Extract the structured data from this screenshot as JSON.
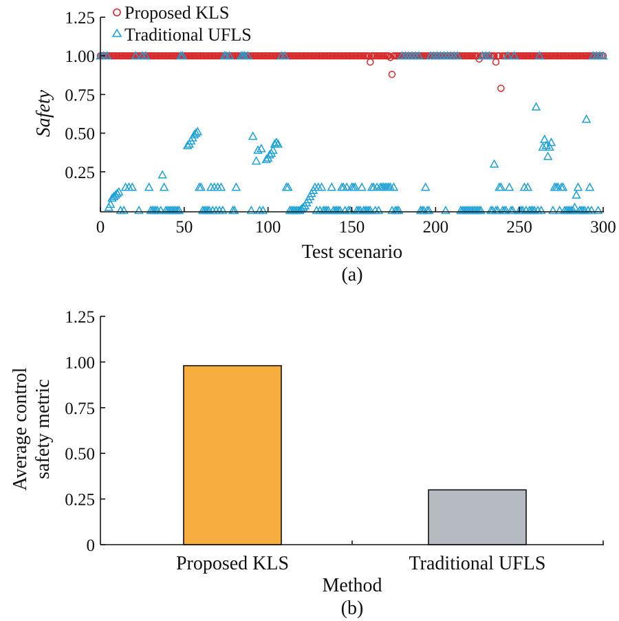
{
  "chart_data": [
    {
      "type": "scatter",
      "panel_label": "(a)",
      "xlabel": "Test scenario",
      "ylabel": "Safety",
      "xlim": [
        0,
        300
      ],
      "ylim": [
        0,
        1.25
      ],
      "xticks": [
        0,
        50,
        100,
        150,
        200,
        250,
        300
      ],
      "xtick_labels": [
        "0",
        "50",
        "100",
        "150",
        "200",
        "250",
        "300"
      ],
      "yticks": [
        0.25,
        0.5,
        0.75,
        1.0,
        1.25
      ],
      "ytick_labels": [
        "0.25",
        "0.50",
        "0.75",
        "1.00",
        "1.25"
      ],
      "legend_position": "top-left",
      "series": [
        {
          "name": "Proposed KLS",
          "marker": "circle",
          "color": "#d62728",
          "default_value": 1.0,
          "x_range": [
            0,
            300
          ],
          "x_step": 1,
          "exceptions": [
            [
              161,
              0.96
            ],
            [
              173,
              0.99
            ],
            [
              174,
              0.88
            ],
            [
              226,
              0.98
            ],
            [
              236,
              0.96
            ],
            [
              239,
              0.79
            ]
          ]
        },
        {
          "name": "Traditional UFLS",
          "marker": "triangle",
          "color": "#1ca0d8",
          "points": [
            [
              0,
              1.0
            ],
            [
              2,
              1.0
            ],
            [
              4,
              1.0
            ],
            [
              5,
              0.02
            ],
            [
              6,
              0.04
            ],
            [
              7,
              0.08
            ],
            [
              8,
              0.09
            ],
            [
              9,
              0.1
            ],
            [
              10,
              0.11
            ],
            [
              11,
              0.12
            ],
            [
              12,
              0.0
            ],
            [
              14,
              0.0
            ],
            [
              15,
              0.15
            ],
            [
              17,
              0.15
            ],
            [
              19,
              0.15
            ],
            [
              21,
              1.0
            ],
            [
              23,
              0.0
            ],
            [
              25,
              1.0
            ],
            [
              27,
              1.0
            ],
            [
              29,
              0.15
            ],
            [
              30,
              0.0
            ],
            [
              31,
              0.0
            ],
            [
              32,
              0.0
            ],
            [
              33,
              0.0
            ],
            [
              34,
              0.0
            ],
            [
              36,
              0.0
            ],
            [
              37,
              0.23
            ],
            [
              38,
              0.15
            ],
            [
              39,
              0.0
            ],
            [
              40,
              0.0
            ],
            [
              41,
              0.0
            ],
            [
              42,
              0.0
            ],
            [
              43,
              0.0
            ],
            [
              44,
              0.0
            ],
            [
              45,
              0.0
            ],
            [
              46,
              0.0
            ],
            [
              47,
              0.0
            ],
            [
              48,
              1.0
            ],
            [
              49,
              1.0
            ],
            [
              52,
              0.42
            ],
            [
              53,
              0.43
            ],
            [
              54,
              0.45
            ],
            [
              55,
              0.47
            ],
            [
              56,
              0.49
            ],
            [
              57,
              0.5
            ],
            [
              58,
              0.51
            ],
            [
              59,
              0.15
            ],
            [
              60,
              0.15
            ],
            [
              61,
              0.0
            ],
            [
              62,
              0.0
            ],
            [
              63,
              0.0
            ],
            [
              64,
              0.0
            ],
            [
              65,
              0.0
            ],
            [
              66,
              0.15
            ],
            [
              67,
              0.0
            ],
            [
              68,
              0.15
            ],
            [
              69,
              0.0
            ],
            [
              70,
              0.15
            ],
            [
              71,
              0.0
            ],
            [
              72,
              0.15
            ],
            [
              73,
              0.0
            ],
            [
              74,
              1.0
            ],
            [
              75,
              1.0
            ],
            [
              77,
              1.0
            ],
            [
              79,
              0.0
            ],
            [
              80,
              0.0
            ],
            [
              81,
              0.15
            ],
            [
              84,
              1.0
            ],
            [
              85,
              1.0
            ],
            [
              86,
              1.0
            ],
            [
              88,
              1.0
            ],
            [
              90,
              0.0
            ],
            [
              91,
              0.48
            ],
            [
              93,
              0.32
            ],
            [
              94,
              0.39
            ],
            [
              95,
              0.0
            ],
            [
              96,
              0.4
            ],
            [
              97,
              0.0
            ],
            [
              99,
              0.33
            ],
            [
              100,
              0.34
            ],
            [
              101,
              0.36
            ],
            [
              102,
              0.37
            ],
            [
              103,
              0.39
            ],
            [
              104,
              0.43
            ],
            [
              105,
              0.44
            ],
            [
              106,
              0.43
            ],
            [
              108,
              1.0
            ],
            [
              110,
              1.0
            ],
            [
              111,
              0.15
            ],
            [
              112,
              0.15
            ],
            [
              113,
              0.0
            ],
            [
              114,
              0.0
            ],
            [
              115,
              0.0
            ],
            [
              116,
              0.0
            ],
            [
              117,
              0.0
            ],
            [
              118,
              0.0
            ],
            [
              119,
              0.0
            ],
            [
              120,
              0.01
            ],
            [
              121,
              0.02
            ],
            [
              122,
              0.03
            ],
            [
              123,
              0.05
            ],
            [
              124,
              0.07
            ],
            [
              125,
              0.09
            ],
            [
              126,
              0.11
            ],
            [
              127,
              0.13
            ],
            [
              128,
              0.15
            ],
            [
              129,
              0.0
            ],
            [
              130,
              0.15
            ],
            [
              131,
              0.0
            ],
            [
              132,
              0.15
            ],
            [
              133,
              0.0
            ],
            [
              134,
              0.0
            ],
            [
              135,
              0.0
            ],
            [
              136,
              0.0
            ],
            [
              138,
              0.15
            ],
            [
              139,
              0.0
            ],
            [
              140,
              0.0
            ],
            [
              141,
              0.0
            ],
            [
              142,
              0.0
            ],
            [
              143,
              0.0
            ],
            [
              144,
              0.15
            ],
            [
              145,
              0.15
            ],
            [
              146,
              0.0
            ],
            [
              147,
              0.15
            ],
            [
              148,
              0.0
            ],
            [
              149,
              0.0
            ],
            [
              150,
              0.15
            ],
            [
              151,
              0.15
            ],
            [
              152,
              0.15
            ],
            [
              153,
              0.0
            ],
            [
              154,
              0.0
            ],
            [
              155,
              0.0
            ],
            [
              156,
              0.15
            ],
            [
              157,
              0.0
            ],
            [
              158,
              0.0
            ],
            [
              159,
              0.0
            ],
            [
              160,
              0.0
            ],
            [
              161,
              0.0
            ],
            [
              162,
              0.15
            ],
            [
              163,
              0.15
            ],
            [
              164,
              0.0
            ],
            [
              165,
              0.15
            ],
            [
              166,
              0.0
            ],
            [
              167,
              0.15
            ],
            [
              168,
              0.15
            ],
            [
              169,
              0.15
            ],
            [
              170,
              0.15
            ],
            [
              171,
              0.15
            ],
            [
              172,
              0.15
            ],
            [
              173,
              0.15
            ],
            [
              174,
              0.0
            ],
            [
              175,
              0.15
            ],
            [
              176,
              0.0
            ],
            [
              177,
              0.0
            ],
            [
              178,
              0.0
            ],
            [
              180,
              1.0
            ],
            [
              182,
              1.0
            ],
            [
              184,
              1.0
            ],
            [
              186,
              1.0
            ],
            [
              188,
              1.0
            ],
            [
              190,
              1.0
            ],
            [
              191,
              0.0
            ],
            [
              192,
              0.0
            ],
            [
              193,
              0.0
            ],
            [
              194,
              0.15
            ],
            [
              195,
              0.0
            ],
            [
              196,
              0.0
            ],
            [
              197,
              1.0
            ],
            [
              199,
              1.0
            ],
            [
              201,
              1.0
            ],
            [
              203,
              1.0
            ],
            [
              205,
              1.0
            ],
            [
              206,
              0.0
            ],
            [
              207,
              1.0
            ],
            [
              209,
              1.0
            ],
            [
              211,
              1.0
            ],
            [
              213,
              1.0
            ],
            [
              215,
              0.0
            ],
            [
              216,
              0.0
            ],
            [
              217,
              0.0
            ],
            [
              218,
              0.0
            ],
            [
              219,
              0.0
            ],
            [
              220,
              0.0
            ],
            [
              221,
              0.0
            ],
            [
              222,
              0.0
            ],
            [
              223,
              0.0
            ],
            [
              224,
              0.0
            ],
            [
              225,
              0.0
            ],
            [
              226,
              0.0
            ],
            [
              227,
              0.0
            ],
            [
              228,
              1.0
            ],
            [
              230,
              1.0
            ],
            [
              232,
              1.0
            ],
            [
              233,
              0.0
            ],
            [
              234,
              0.0
            ],
            [
              235,
              0.3
            ],
            [
              236,
              0.0
            ],
            [
              237,
              0.0
            ],
            [
              238,
              0.15
            ],
            [
              239,
              0.15
            ],
            [
              240,
              0.0
            ],
            [
              241,
              0.0
            ],
            [
              242,
              0.0
            ],
            [
              243,
              1.0
            ],
            [
              244,
              0.15
            ],
            [
              245,
              0.0
            ],
            [
              246,
              0.0
            ],
            [
              247,
              1.0
            ],
            [
              250,
              0.0
            ],
            [
              251,
              0.0
            ],
            [
              252,
              0.0
            ],
            [
              253,
              0.15
            ],
            [
              254,
              0.0
            ],
            [
              255,
              0.15
            ],
            [
              256,
              0.0
            ],
            [
              257,
              0.0
            ],
            [
              258,
              0.0
            ],
            [
              259,
              0.0
            ],
            [
              260,
              0.67
            ],
            [
              261,
              0.0
            ],
            [
              262,
              1.0
            ],
            [
              263,
              0.0
            ],
            [
              264,
              0.41
            ],
            [
              265,
              0.46
            ],
            [
              266,
              0.42
            ],
            [
              267,
              0.35
            ],
            [
              268,
              0.41
            ],
            [
              269,
              0.44
            ],
            [
              270,
              0.0
            ],
            [
              271,
              0.15
            ],
            [
              272,
              0.15
            ],
            [
              273,
              0.15
            ],
            [
              274,
              0.0
            ],
            [
              275,
              0.15
            ],
            [
              276,
              0.15
            ],
            [
              277,
              0.0
            ],
            [
              278,
              0.0
            ],
            [
              279,
              0.0
            ],
            [
              280,
              0.0
            ],
            [
              281,
              0.0
            ],
            [
              282,
              0.0
            ],
            [
              283,
              0.02
            ],
            [
              284,
              0.1
            ],
            [
              285,
              0.15
            ],
            [
              286,
              0.0
            ],
            [
              287,
              0.0
            ],
            [
              288,
              0.0
            ],
            [
              289,
              0.0
            ],
            [
              290,
              0.59
            ],
            [
              291,
              0.0
            ],
            [
              292,
              0.15
            ],
            [
              293,
              0.0
            ],
            [
              294,
              1.0
            ],
            [
              296,
              1.0
            ],
            [
              297,
              0.0
            ],
            [
              298,
              1.0
            ],
            [
              300,
              1.0
            ]
          ]
        }
      ]
    },
    {
      "type": "bar",
      "panel_label": "(b)",
      "categories": [
        "Proposed KLS",
        "Traditional UFLS"
      ],
      "values": [
        0.98,
        0.3
      ],
      "bar_colors": [
        "#f8ae3f",
        "#b5bbc1"
      ],
      "xlabel": "Method",
      "ylabel": "Average control safety metric",
      "ylabel_lines": [
        "Average control",
        "safety metric"
      ],
      "ylim": [
        0,
        1.25
      ],
      "yticks": [
        0,
        0.25,
        0.5,
        0.75,
        1.0,
        1.25
      ],
      "ytick_labels": [
        "0",
        "0.25",
        "0.50",
        "0.75",
        "1.00",
        "1.25"
      ]
    }
  ]
}
